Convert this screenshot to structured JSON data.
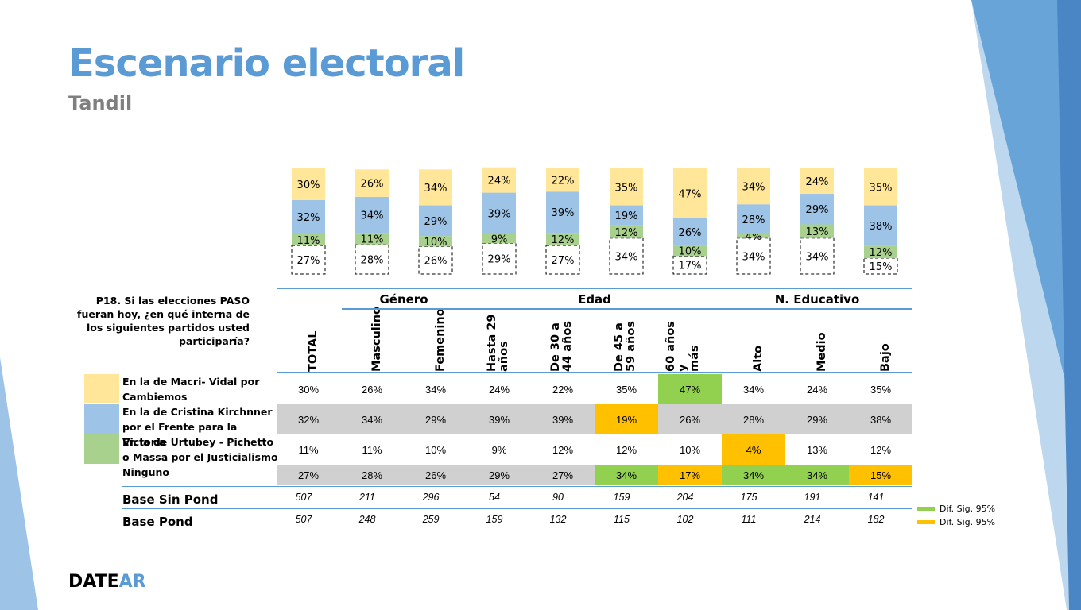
{
  "slide": {
    "title": "Escenario electoral",
    "subtitle": "Tandil",
    "logo_part1": "DATE",
    "logo_part2": "AR",
    "question": "P18. Si las elecciones PASO fueran hoy, ¿en qué interna de los siguientes partidos usted participaría?"
  },
  "colors": {
    "macri": "#ffe699",
    "cristina": "#9dc3e6",
    "massa": "#a9d18e",
    "ninguno_border": "#000000",
    "sig_green": "#92d050",
    "sig_orange": "#ffc000",
    "row_gray": "#d0d0d0",
    "accent": "#5b9bd5"
  },
  "groups": [
    {
      "label": "Género",
      "span": [
        1,
        2
      ]
    },
    {
      "label": "Edad",
      "span": [
        3,
        6
      ]
    },
    {
      "label": "N. Educativo",
      "span": [
        7,
        9
      ]
    }
  ],
  "chart_data": {
    "type": "bar",
    "stacked": true,
    "categories": [
      "TOTAL",
      "Masculino",
      "Femenino",
      "Hasta 29 años",
      "De 30 a 44 años",
      "De 45 a 59 años",
      "60 años y más",
      "Alto",
      "Medio",
      "Bajo"
    ],
    "category_display": [
      "TOTAL",
      "Masculino",
      "Femenino",
      "Hasta 29\naños",
      "De 30 a\n44 años",
      "De 45 a\n59 años",
      "60 años y\nmás",
      "Alto",
      "Medio",
      "Bajo"
    ],
    "series": [
      {
        "name": "Ninguno",
        "values": [
          27,
          28,
          26,
          29,
          27,
          34,
          17,
          34,
          34,
          15
        ]
      },
      {
        "name": "En la de Urtubey - Pichetto o Massa por el Justicialismo",
        "values": [
          11,
          11,
          10,
          9,
          12,
          12,
          10,
          4,
          13,
          12
        ]
      },
      {
        "name": "En la de Cristina Kirchnner por el Frente para la Victoria",
        "values": [
          32,
          34,
          29,
          39,
          39,
          19,
          26,
          28,
          29,
          38
        ]
      },
      {
        "name": "En la de Macri- Vidal por Cambiemos",
        "values": [
          30,
          26,
          34,
          24,
          22,
          35,
          47,
          34,
          24,
          35
        ]
      }
    ]
  },
  "table": {
    "rows": [
      {
        "label": "En la de Macri- Vidal por Cambiemos",
        "values": [
          "30%",
          "26%",
          "34%",
          "24%",
          "22%",
          "35%",
          "47%",
          "34%",
          "24%",
          "35%"
        ],
        "highlight": [
          null,
          null,
          null,
          null,
          null,
          null,
          "green",
          null,
          null,
          null
        ]
      },
      {
        "label": "En la de Cristina Kirchnner por el Frente para la Victoria",
        "values": [
          "32%",
          "34%",
          "29%",
          "39%",
          "39%",
          "19%",
          "26%",
          "28%",
          "29%",
          "38%"
        ],
        "highlight": [
          null,
          null,
          null,
          null,
          null,
          "orange",
          null,
          null,
          null,
          null
        ]
      },
      {
        "label": "En la de Urtubey - Pichetto o Massa por el Justicialismo",
        "values": [
          "11%",
          "11%",
          "10%",
          "9%",
          "12%",
          "12%",
          "10%",
          "4%",
          "13%",
          "12%"
        ],
        "highlight": [
          null,
          null,
          null,
          null,
          null,
          null,
          null,
          "orange",
          null,
          null
        ]
      },
      {
        "label": "Ninguno",
        "values": [
          "27%",
          "28%",
          "26%",
          "29%",
          "27%",
          "34%",
          "17%",
          "34%",
          "34%",
          "15%"
        ],
        "highlight": [
          null,
          null,
          null,
          null,
          null,
          "green",
          "orange",
          "green",
          "green",
          "orange"
        ]
      }
    ],
    "bases": [
      {
        "label": "Base Sin Pond",
        "values": [
          "507",
          "211",
          "296",
          "54",
          "90",
          "159",
          "204",
          "175",
          "191",
          "141"
        ]
      },
      {
        "label": "Base Pond",
        "values": [
          "507",
          "248",
          "259",
          "159",
          "132",
          "115",
          "102",
          "111",
          "214",
          "182"
        ]
      }
    ]
  },
  "legend": [
    {
      "label": "Dif. Sig. 95%",
      "color": "sig_green"
    },
    {
      "label": "Dif. Sig. 95%",
      "color": "sig_orange"
    }
  ]
}
